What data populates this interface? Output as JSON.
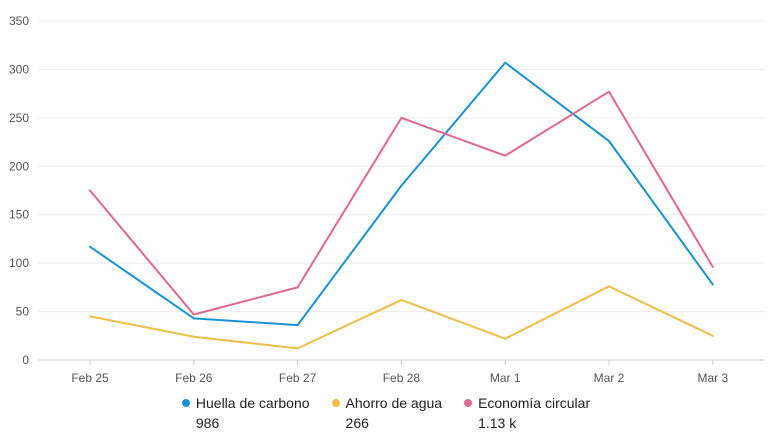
{
  "chart_data": {
    "type": "line",
    "categories": [
      "Feb 25",
      "Feb 26",
      "Feb 27",
      "Feb 28",
      "Mar 1",
      "Mar 2",
      "Mar 3"
    ],
    "y_ticks": [
      0,
      50,
      100,
      150,
      200,
      250,
      300,
      350
    ],
    "ylim": [
      0,
      350
    ],
    "grid": true,
    "legend_position": "bottom",
    "series": [
      {
        "name": "Huella de carbono",
        "total": "986",
        "color": "#1a93d6",
        "values": [
          117,
          43,
          36,
          180,
          307,
          226,
          78
        ]
      },
      {
        "name": "Ahorro de agua",
        "total": "266",
        "color": "#f0bc4a",
        "values": [
          45,
          24,
          12,
          62,
          22,
          76,
          25
        ]
      },
      {
        "name": "Economía circular",
        "total": "1.13 k",
        "color": "#e0688f",
        "values": [
          175,
          47,
          75,
          250,
          211,
          277,
          96
        ]
      }
    ]
  }
}
